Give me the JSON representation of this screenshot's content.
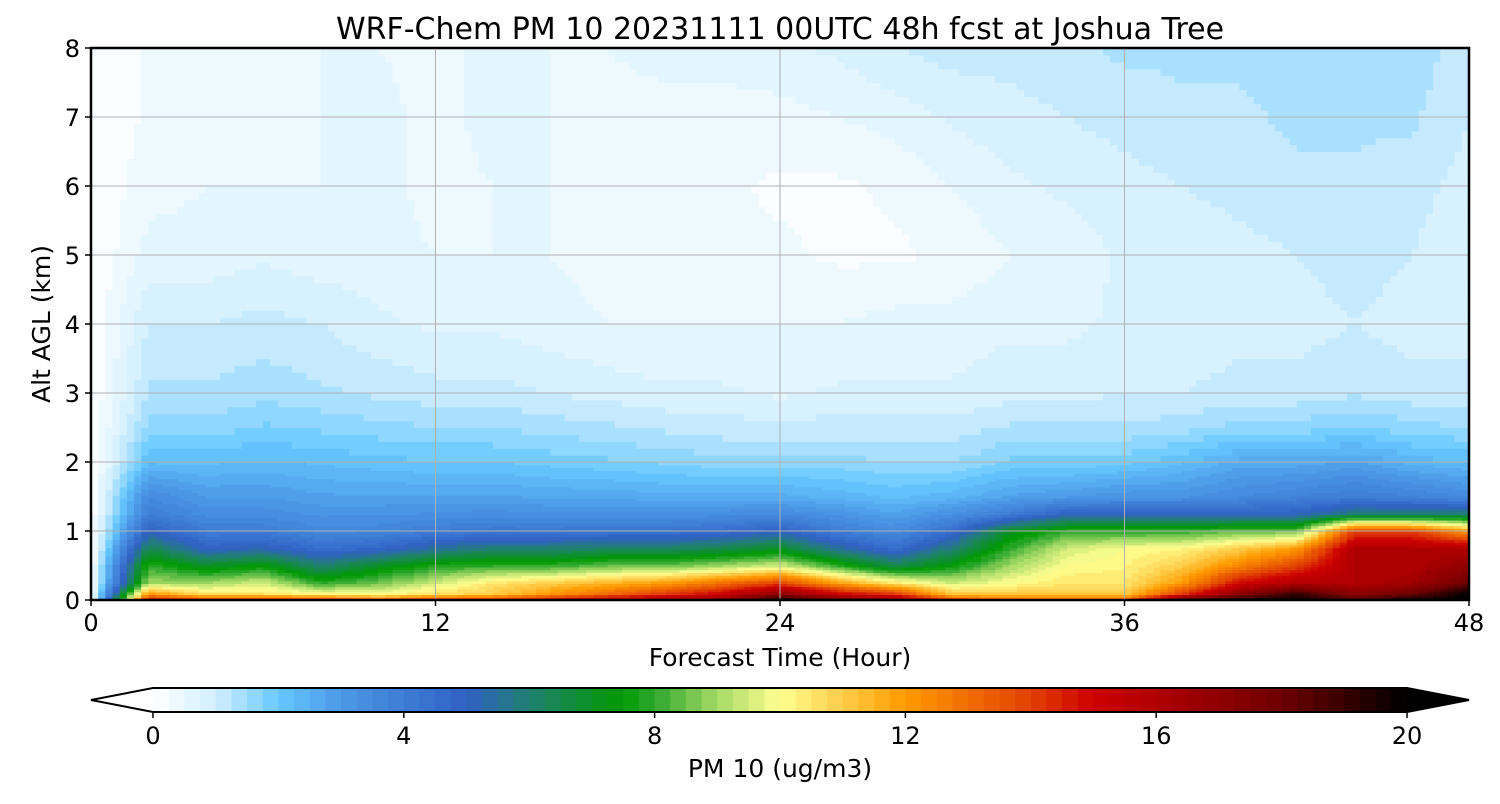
{
  "chart_data": {
    "type": "heatmap",
    "title": "WRF-Chem PM 10  20231111 00UTC 48h fcst at Joshua Tree",
    "xlabel": "Forecast Time (Hour)",
    "ylabel": "Alt AGL (km)",
    "xlim": [
      0,
      48
    ],
    "ylim": [
      0,
      8
    ],
    "xticks": [
      "0",
      "12",
      "24",
      "36",
      "48"
    ],
    "xtick_values": [
      0,
      12,
      24,
      36,
      48
    ],
    "yticks": [
      "0",
      "1",
      "2",
      "3",
      "4",
      "5",
      "6",
      "7",
      "8"
    ],
    "ytick_values": [
      0,
      1,
      2,
      3,
      4,
      5,
      6,
      7,
      8
    ],
    "grid": true,
    "times": [
      0,
      2,
      4,
      6,
      8,
      10,
      12,
      14,
      16,
      18,
      20,
      22,
      24,
      26,
      28,
      30,
      32,
      34,
      36,
      38,
      40,
      42,
      44,
      46,
      48
    ],
    "altitudes": [
      0,
      0.1,
      0.25,
      0.5,
      0.75,
      1,
      1.25,
      1.5,
      2,
      2.5,
      3,
      4,
      5,
      6,
      7,
      8
    ],
    "values_by_time": [
      [
        0,
        0,
        0,
        0,
        0,
        0,
        0,
        0,
        0,
        0,
        0,
        0,
        0,
        0,
        0,
        0
      ],
      [
        15,
        12,
        9,
        8,
        6.5,
        5,
        4,
        3.5,
        2.2,
        1.6,
        1.3,
        1.0,
        0.6,
        0.4,
        0.3,
        0.3
      ],
      [
        14,
        10.5,
        9,
        7,
        5,
        4,
        3.4,
        3,
        2.2,
        1.6,
        1.3,
        1.0,
        0.6,
        0.5,
        0.4,
        0.4
      ],
      [
        14,
        10.5,
        9.5,
        7.5,
        5.2,
        4,
        3.4,
        3,
        2.3,
        1.8,
        1.4,
        1.1,
        0.7,
        0.5,
        0.4,
        0.4
      ],
      [
        14,
        10,
        8,
        6,
        4.5,
        3.6,
        3.2,
        2.8,
        2.2,
        1.7,
        1.3,
        1.0,
        0.6,
        0.5,
        0.5,
        0.5
      ],
      [
        13,
        10,
        8.5,
        7,
        4.8,
        3.7,
        3.2,
        2.8,
        2.1,
        1.6,
        1.2,
        0.8,
        0.6,
        0.6,
        0.6,
        0.5
      ],
      [
        14,
        10.5,
        9.5,
        7.8,
        5.5,
        4,
        3.3,
        2.8,
        2,
        1.5,
        1.1,
        0.7,
        0.5,
        0.4,
        0.4,
        0.4
      ],
      [
        14,
        11,
        10.5,
        8,
        6,
        4.2,
        3.4,
        2.8,
        2,
        1.5,
        1.1,
        0.7,
        0.5,
        0.5,
        0.6,
        0.6
      ],
      [
        15,
        12,
        11,
        8,
        6,
        4.2,
        3.3,
        2.7,
        1.9,
        1.4,
        1.0,
        0.6,
        0.5,
        0.5,
        0.5,
        0.5
      ],
      [
        16,
        13,
        11.5,
        8.5,
        6.2,
        4.3,
        3.3,
        2.7,
        1.8,
        1.3,
        0.9,
        0.5,
        0.4,
        0.4,
        0.4,
        0.5
      ],
      [
        16.5,
        14,
        12,
        8.5,
        6.2,
        4.3,
        3.3,
        2.6,
        1.7,
        1.2,
        0.8,
        0.5,
        0.4,
        0.4,
        0.4,
        0.6
      ],
      [
        17,
        15,
        13,
        9,
        6.5,
        4.5,
        3.4,
        2.6,
        1.6,
        1.1,
        0.8,
        0.5,
        0.3,
        0.3,
        0.4,
        0.6
      ],
      [
        20,
        17,
        14,
        9.5,
        7,
        5,
        3.5,
        2.6,
        1.6,
        1.1,
        0.7,
        0.5,
        0.3,
        0.2,
        0.4,
        0.7
      ],
      [
        18,
        15,
        12,
        8,
        5.5,
        4,
        3.2,
        2.4,
        1.6,
        1.1,
        0.8,
        0.5,
        0.2,
        0.2,
        0.5,
        0.8
      ],
      [
        17,
        14,
        10.5,
        6.5,
        4.5,
        3.5,
        2.8,
        2.2,
        1.5,
        1.1,
        0.8,
        0.6,
        0.2,
        0.3,
        0.6,
        1.0
      ],
      [
        14,
        11,
        9.5,
        7.5,
        6,
        4.5,
        3.3,
        2.4,
        1.5,
        1.1,
        0.8,
        0.6,
        0.3,
        0.5,
        0.8,
        1.1
      ],
      [
        13,
        11,
        10,
        9,
        8,
        7,
        4,
        2.8,
        1.8,
        1.3,
        0.9,
        0.7,
        0.5,
        0.7,
        0.9,
        1.1
      ],
      [
        13,
        11,
        10.5,
        10,
        9.5,
        8,
        5,
        3,
        1.8,
        1.3,
        0.9,
        0.7,
        0.6,
        0.8,
        1.0,
        1.2
      ],
      [
        13,
        11,
        10.5,
        10.2,
        10,
        8,
        5,
        3.2,
        1.9,
        1.3,
        1.0,
        0.8,
        0.8,
        0.9,
        1.1,
        1.3
      ],
      [
        19,
        14,
        12,
        11,
        10.2,
        8,
        5,
        3.2,
        2.2,
        1.4,
        1.0,
        0.8,
        0.8,
        1.0,
        1.2,
        1.3
      ],
      [
        20,
        17,
        15,
        12.5,
        11,
        8.5,
        5,
        3.5,
        2.6,
        1.6,
        1.1,
        0.9,
        0.9,
        1.1,
        1.2,
        1.3
      ],
      [
        20,
        19,
        16,
        14,
        12,
        8.5,
        5,
        3.8,
        2.6,
        1.6,
        1.1,
        0.9,
        1.0,
        1.2,
        1.3,
        1.4
      ],
      [
        19,
        17,
        16,
        16,
        16,
        14,
        6,
        4,
        2.8,
        1.8,
        1.2,
        1.0,
        1.1,
        1.2,
        1.3,
        1.3
      ],
      [
        20,
        18,
        16.5,
        16,
        16,
        14,
        6,
        3.8,
        2.4,
        1.6,
        1.1,
        0.9,
        1.0,
        1.1,
        1.3,
        1.4
      ],
      [
        20,
        20,
        18,
        17,
        16,
        12,
        6,
        3.5,
        2.2,
        1.5,
        1.1,
        0.9,
        0.8,
        0.9,
        1.0,
        1.1
      ]
    ],
    "colorbar": {
      "label": "PM 10  (ug/m3)",
      "range": [
        0,
        20
      ],
      "extend": "both",
      "levels": 80,
      "ticks": [
        "0",
        "4",
        "8",
        "12",
        "16",
        "20"
      ],
      "tick_values": [
        0,
        4,
        8,
        12,
        16,
        20
      ],
      "colormap": [
        [
          0,
          "#ffffff"
        ],
        [
          1,
          "#d2efff"
        ],
        [
          2,
          "#66c8ff"
        ],
        [
          3,
          "#4c98e6"
        ],
        [
          5,
          "#3060c4"
        ],
        [
          6,
          "#208070"
        ],
        [
          7.5,
          "#009a00"
        ],
        [
          8,
          "#2ea82e"
        ],
        [
          9,
          "#a6da66"
        ],
        [
          10,
          "#ffff90"
        ],
        [
          12,
          "#ff9a00"
        ],
        [
          14,
          "#e24000"
        ],
        [
          15,
          "#cc0000"
        ],
        [
          16,
          "#b00000"
        ],
        [
          18,
          "#6e0000"
        ],
        [
          20,
          "#000000"
        ]
      ]
    }
  }
}
